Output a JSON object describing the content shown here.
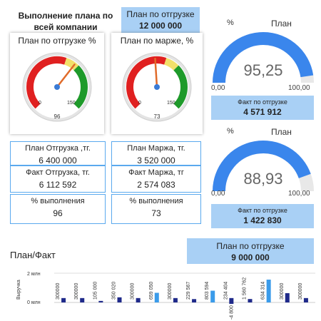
{
  "header": {
    "title": "Выполнение плана по всей компании",
    "plan_ship_label": "План по отгрузке",
    "plan_ship_value": "12 000 000"
  },
  "gauge_ship": {
    "title": "План по отгрузке %",
    "min": "0",
    "max": "150",
    "value": "96",
    "value_num": 96
  },
  "gauge_margin": {
    "title": "План по марже, %",
    "min": "0",
    "max": "150",
    "value": "73",
    "value_num": 73
  },
  "kpi_ship": {
    "plan_label": "План Отгрузка ,тг.",
    "plan_value": "6 400 000",
    "fact_label": "Факт Отгрузка, тг.",
    "fact_value": "6 112 592",
    "pct_label": "% выполнения",
    "pct_value": "96"
  },
  "kpi_margin": {
    "plan_label": "План Маржа, тг.",
    "plan_value": "3 520 000",
    "fact_label": "Факт Маржа, тг",
    "fact_value": "2 574 083",
    "pct_label": "% выполнения",
    "pct_value": "73"
  },
  "donut1": {
    "pct_label": "%",
    "plan_label": "План",
    "value": "95,25",
    "value_num": 95.25,
    "min": "0,00",
    "max": "100,00",
    "fact_label": "Факт по отгрузке",
    "fact_value": "4 571 912"
  },
  "donut2": {
    "pct_label": "%",
    "plan_label": "План",
    "value": "88,93",
    "value_num": 88.93,
    "min": "0,00",
    "max": "100,00",
    "fact_label": "Факт по отгрузке",
    "fact_value": "1 422 830"
  },
  "bottom_plan": {
    "label": "План по отгрузке",
    "value": "9 000 000"
  },
  "colors": {
    "accent": "#3a86ec",
    "light": "#a9d0f5",
    "dark": "#1f2a8a",
    "track": "#e8e8e8"
  },
  "chart_data": {
    "type": "bar",
    "title": "План/Факт",
    "ylabel": "Выручка",
    "ytick_labels": [
      "2 млн",
      "0 млн"
    ],
    "ylim": [
      -500000,
      2000000
    ],
    "series": [
      {
        "values": [
          300000,
          300000,
          105000,
          350020,
          300000,
          659050,
          300000,
          229567,
          803594,
          300000,
          234404,
          1560762,
          634314,
          300000
        ]
      },
      {
        "values": [
          -4800
        ]
      }
    ],
    "data_labels": [
      "300000",
      "300000",
      "105 000",
      "350 020",
      "300000",
      "659 050",
      "300000",
      "229 567",
      "803 594",
      "-4 800",
      "234 404",
      "1 560 762",
      "634 314",
      "300000"
    ]
  }
}
